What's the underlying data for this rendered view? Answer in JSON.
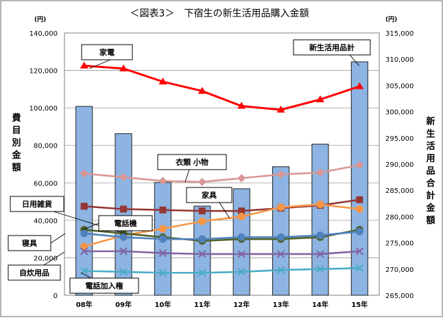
{
  "chart_data": {
    "type": "bar+line",
    "title": "＜図表3＞　下宿生の新生活用品購入金額",
    "left_axis": {
      "unit": "(円)",
      "label": "費目別金額",
      "ylim": [
        0,
        140000
      ],
      "ticks": [
        "0",
        "20,000",
        "40,000",
        "60,000",
        "80,000",
        "100,000",
        "120,000",
        "140,000"
      ]
    },
    "right_axis": {
      "unit": "(円)",
      "label": "新生活用品合計金額",
      "ylim": [
        265000,
        315000
      ],
      "ticks": [
        "265,000",
        "270,000",
        "275,000",
        "280,000",
        "285,000",
        "290,000",
        "295,000",
        "300,000",
        "305,000",
        "310,000",
        "315,000"
      ]
    },
    "categories": [
      "08年",
      "09年",
      "10年",
      "11年",
      "12年",
      "13年",
      "14年",
      "15年"
    ],
    "bar_series": {
      "name": "新生活用品計",
      "axis": "right",
      "color": "#8DB4E2",
      "values": [
        301000,
        295800,
        286500,
        282000,
        285300,
        289500,
        293800,
        309500
      ]
    },
    "line_series": [
      {
        "name": "家電",
        "color": "#FF0000",
        "marker": "triangle",
        "values": [
          122500,
          121000,
          114000,
          109000,
          101000,
          99000,
          104500,
          111500
        ]
      },
      {
        "name": "衣類 小物",
        "color": "#D99694",
        "marker": "diamond",
        "values": [
          65000,
          63000,
          61000,
          60500,
          62500,
          64500,
          65500,
          69500
        ]
      },
      {
        "name": "日用雑貨",
        "color": "#953735",
        "marker": "square",
        "values": [
          47500,
          46000,
          45500,
          45000,
          45000,
          46500,
          48000,
          51000
        ]
      },
      {
        "name": "家具",
        "color": "#F79646",
        "marker": "circle",
        "values": [
          26000,
          32000,
          35500,
          39500,
          42000,
          47000,
          48500,
          46000
        ]
      },
      {
        "name": "電話機",
        "color": "#4F6228",
        "marker": "circle",
        "values": [
          35000,
          33000,
          31000,
          29000,
          30000,
          30000,
          31000,
          35000
        ]
      },
      {
        "name": "寝具",
        "color": "#4F81BD",
        "marker": "circle",
        "values": [
          33000,
          31000,
          30000,
          30000,
          31000,
          31000,
          32000,
          34000
        ]
      },
      {
        "name": "自炊用品",
        "color": "#8064A2",
        "marker": "x",
        "values": [
          23500,
          23500,
          22500,
          22000,
          22000,
          22000,
          22000,
          23500
        ]
      },
      {
        "name": "電話加入権",
        "color": "#4BACC6",
        "marker": "x",
        "values": [
          13000,
          12500,
          12000,
          12000,
          12500,
          13500,
          14000,
          14500
        ]
      }
    ],
    "legend": "callouts",
    "grid": true
  }
}
